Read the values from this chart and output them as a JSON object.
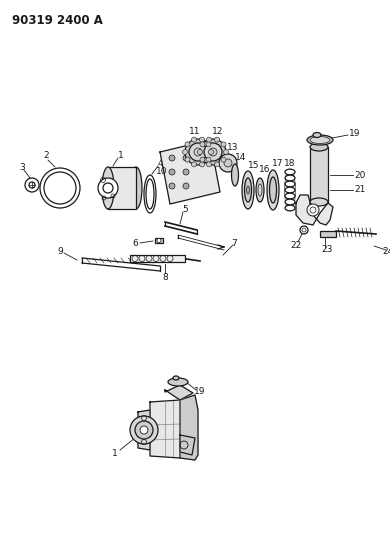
{
  "title": "90319 2400 A",
  "bg_color": "#ffffff",
  "line_color": "#1a1a1a",
  "text_color": "#1a1a1a",
  "figsize": [
    3.9,
    5.33
  ],
  "dpi": 100
}
